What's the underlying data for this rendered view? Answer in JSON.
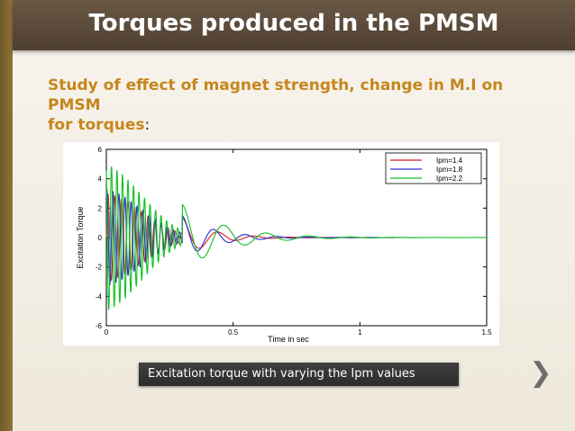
{
  "slide": {
    "title": "Torques produced in the PMSM",
    "subtitle_line1": "Study of effect of magnet strength, change in M.I on PMSM",
    "subtitle_line2": "for torques",
    "subtitle_colon": ":",
    "caption": "Excitation torque with varying the Ipm values",
    "next_icon": "chevron-right-icon",
    "colors": {
      "title_bar": "#5b4a3a",
      "subtitle": "#c6861d",
      "left_bar": "#7d6530",
      "caption_bg": "#333333"
    }
  },
  "chart_data": {
    "type": "line",
    "title": "",
    "xlabel": "Time in sec",
    "ylabel": "Excitation Torque",
    "xlim": [
      0,
      1.5
    ],
    "ylim": [
      -6,
      6
    ],
    "x_ticks": [
      "0",
      "0.5",
      "1",
      "1.5"
    ],
    "y_ticks": [
      "6",
      "4",
      "2",
      "0",
      "-2",
      "-4",
      "-6"
    ],
    "grid": false,
    "legend_position": "top-right",
    "series": [
      {
        "name": "Ipm=1.4",
        "color": "#d22020",
        "amplitude": 3.0,
        "freq_hz": 38,
        "decay": 9.0,
        "late_freq_hz": 7
      },
      {
        "name": "Ipm=1.8",
        "color": "#2a2ad0",
        "amplitude": 3.3,
        "freq_hz": 42,
        "decay": 8.0,
        "late_freq_hz": 8
      },
      {
        "name": "Ipm=2.2",
        "color": "#10c020",
        "amplitude": 5.0,
        "freq_hz": 46,
        "decay": 6.0,
        "late_freq_hz": 6
      }
    ]
  }
}
